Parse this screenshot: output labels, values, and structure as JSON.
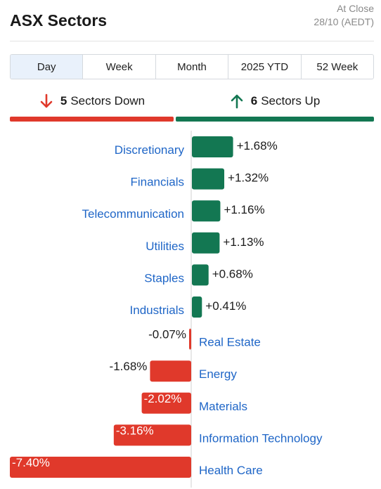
{
  "header": {
    "title": "ASX Sectors",
    "asof_line1": "At Close",
    "asof_line2": "28/10 (AEDT)"
  },
  "tabs": [
    {
      "label": "Day",
      "active": true
    },
    {
      "label": "Week",
      "active": false
    },
    {
      "label": "Month",
      "active": false
    },
    {
      "label": "2025 YTD",
      "active": false
    },
    {
      "label": "52 Week",
      "active": false
    }
  ],
  "summary": {
    "down_count": "5",
    "down_label": "Sectors Down",
    "up_count": "6",
    "up_label": "Sectors Up"
  },
  "colors": {
    "up": "#137752",
    "down": "#e0392b",
    "label": "#1f66c7"
  },
  "chart_data": {
    "type": "bar",
    "orientation": "horizontal",
    "categories": [
      "Discretionary",
      "Financials",
      "Telecommunication",
      "Utilities",
      "Staples",
      "Industrials",
      "Real Estate",
      "Energy",
      "Materials",
      "Information Technology",
      "Health Care"
    ],
    "values": [
      1.68,
      1.32,
      1.16,
      1.13,
      0.68,
      0.41,
      -0.07,
      -1.68,
      -2.02,
      -3.16,
      -7.4
    ],
    "value_labels": [
      "+1.68%",
      "+1.32%",
      "+1.16%",
      "+1.13%",
      "+0.68%",
      "+0.41%",
      "-0.07%",
      "-1.68%",
      "-2.02%",
      "-3.16%",
      "-7.40%"
    ],
    "xlim": [
      -7.4,
      7.4
    ],
    "grid": false,
    "legend": "none"
  }
}
